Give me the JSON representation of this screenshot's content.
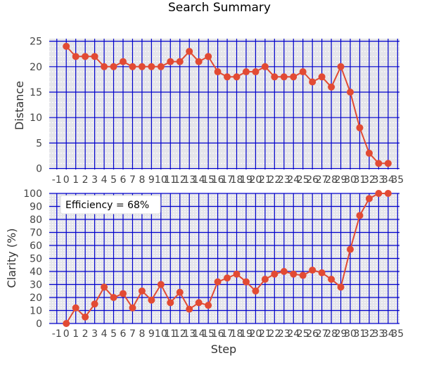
{
  "figure": {
    "title": "Search Summary",
    "xlabel": "Step"
  },
  "colors": {
    "panel_bg": "#e5e5ea",
    "grid_major": "#0000cc",
    "grid_minor": "#ffffff",
    "series": "#e24a33",
    "tick_text": "#444444"
  },
  "chart_data": [
    {
      "type": "line",
      "panel": "top",
      "ylabel": "Distance",
      "grid": true,
      "xlim": [
        -1.8,
        35.2
      ],
      "ylim": [
        -0.2,
        25.5
      ],
      "xticks": [
        -1,
        0,
        1,
        2,
        3,
        4,
        5,
        6,
        7,
        8,
        9,
        10,
        11,
        12,
        13,
        14,
        15,
        16,
        17,
        18,
        19,
        20,
        21,
        22,
        23,
        24,
        25,
        26,
        27,
        28,
        29,
        30,
        31,
        32,
        33,
        34,
        35
      ],
      "xtick_labels": [
        "-1",
        "0",
        "1",
        "2",
        "3",
        "4",
        "5",
        "6",
        "7",
        "8",
        "9",
        "10",
        "11",
        "12",
        "13",
        "14",
        "15",
        "16",
        "17",
        "18",
        "19",
        "20",
        "21",
        "22",
        "23",
        "24",
        "25",
        "26",
        "27",
        "28",
        "29",
        "30",
        "31",
        "32",
        "33",
        "34",
        "35"
      ],
      "yticks": [
        0,
        5,
        10,
        15,
        20,
        25
      ],
      "ytick_labels": [
        "0",
        "5",
        "10",
        "15",
        "20",
        "25"
      ],
      "series": [
        {
          "x": [
            0,
            1,
            2,
            3,
            4,
            5,
            6,
            7,
            8,
            9,
            10,
            11,
            12,
            13,
            14,
            15,
            16,
            17,
            18,
            19,
            20,
            21,
            22,
            23,
            24,
            25,
            26,
            27,
            28,
            29,
            30,
            31,
            32,
            33,
            34
          ],
          "values": [
            24,
            22,
            22,
            22,
            20,
            20,
            21,
            20,
            20,
            20,
            20,
            21,
            21,
            23,
            21,
            22,
            19,
            18,
            18,
            19,
            19,
            20,
            18,
            18,
            18,
            19,
            17,
            18,
            16,
            20,
            15,
            8,
            3,
            1,
            1
          ]
        }
      ]
    },
    {
      "type": "line",
      "panel": "bottom",
      "ylabel": "Clarity (%)",
      "grid": true,
      "annotation": "Efficiency = 68%",
      "xlim": [
        -1.8,
        35.2
      ],
      "ylim": [
        0,
        100
      ],
      "xticks": [
        -1,
        0,
        1,
        2,
        3,
        4,
        5,
        6,
        7,
        8,
        9,
        10,
        11,
        12,
        13,
        14,
        15,
        16,
        17,
        18,
        19,
        20,
        21,
        22,
        23,
        24,
        25,
        26,
        27,
        28,
        29,
        30,
        31,
        32,
        33,
        34,
        35
      ],
      "xtick_labels": [
        "-1",
        "0",
        "1",
        "2",
        "3",
        "4",
        "5",
        "6",
        "7",
        "8",
        "9",
        "10",
        "11",
        "12",
        "13",
        "14",
        "15",
        "16",
        "17",
        "18",
        "19",
        "20",
        "21",
        "22",
        "23",
        "24",
        "25",
        "26",
        "27",
        "28",
        "29",
        "30",
        "31",
        "32",
        "33",
        "34",
        "35"
      ],
      "yticks": [
        0,
        10,
        20,
        30,
        40,
        50,
        60,
        70,
        80,
        90,
        100
      ],
      "ytick_labels": [
        "0",
        "10",
        "20",
        "30",
        "40",
        "50",
        "60",
        "70",
        "80",
        "90",
        "100"
      ],
      "series": [
        {
          "x": [
            0,
            1,
            2,
            3,
            4,
            5,
            6,
            7,
            8,
            9,
            10,
            11,
            12,
            13,
            14,
            15,
            16,
            17,
            18,
            19,
            20,
            21,
            22,
            23,
            24,
            25,
            26,
            27,
            28,
            29,
            30,
            31,
            32,
            33,
            34
          ],
          "values": [
            0,
            12,
            5,
            15,
            28,
            20,
            23,
            12,
            25,
            18,
            30,
            16,
            24,
            11,
            16,
            14,
            32,
            35,
            38,
            32,
            25,
            34,
            38,
            40,
            38,
            37,
            41,
            39,
            34,
            28,
            57,
            83,
            96,
            100,
            100
          ]
        }
      ]
    }
  ]
}
